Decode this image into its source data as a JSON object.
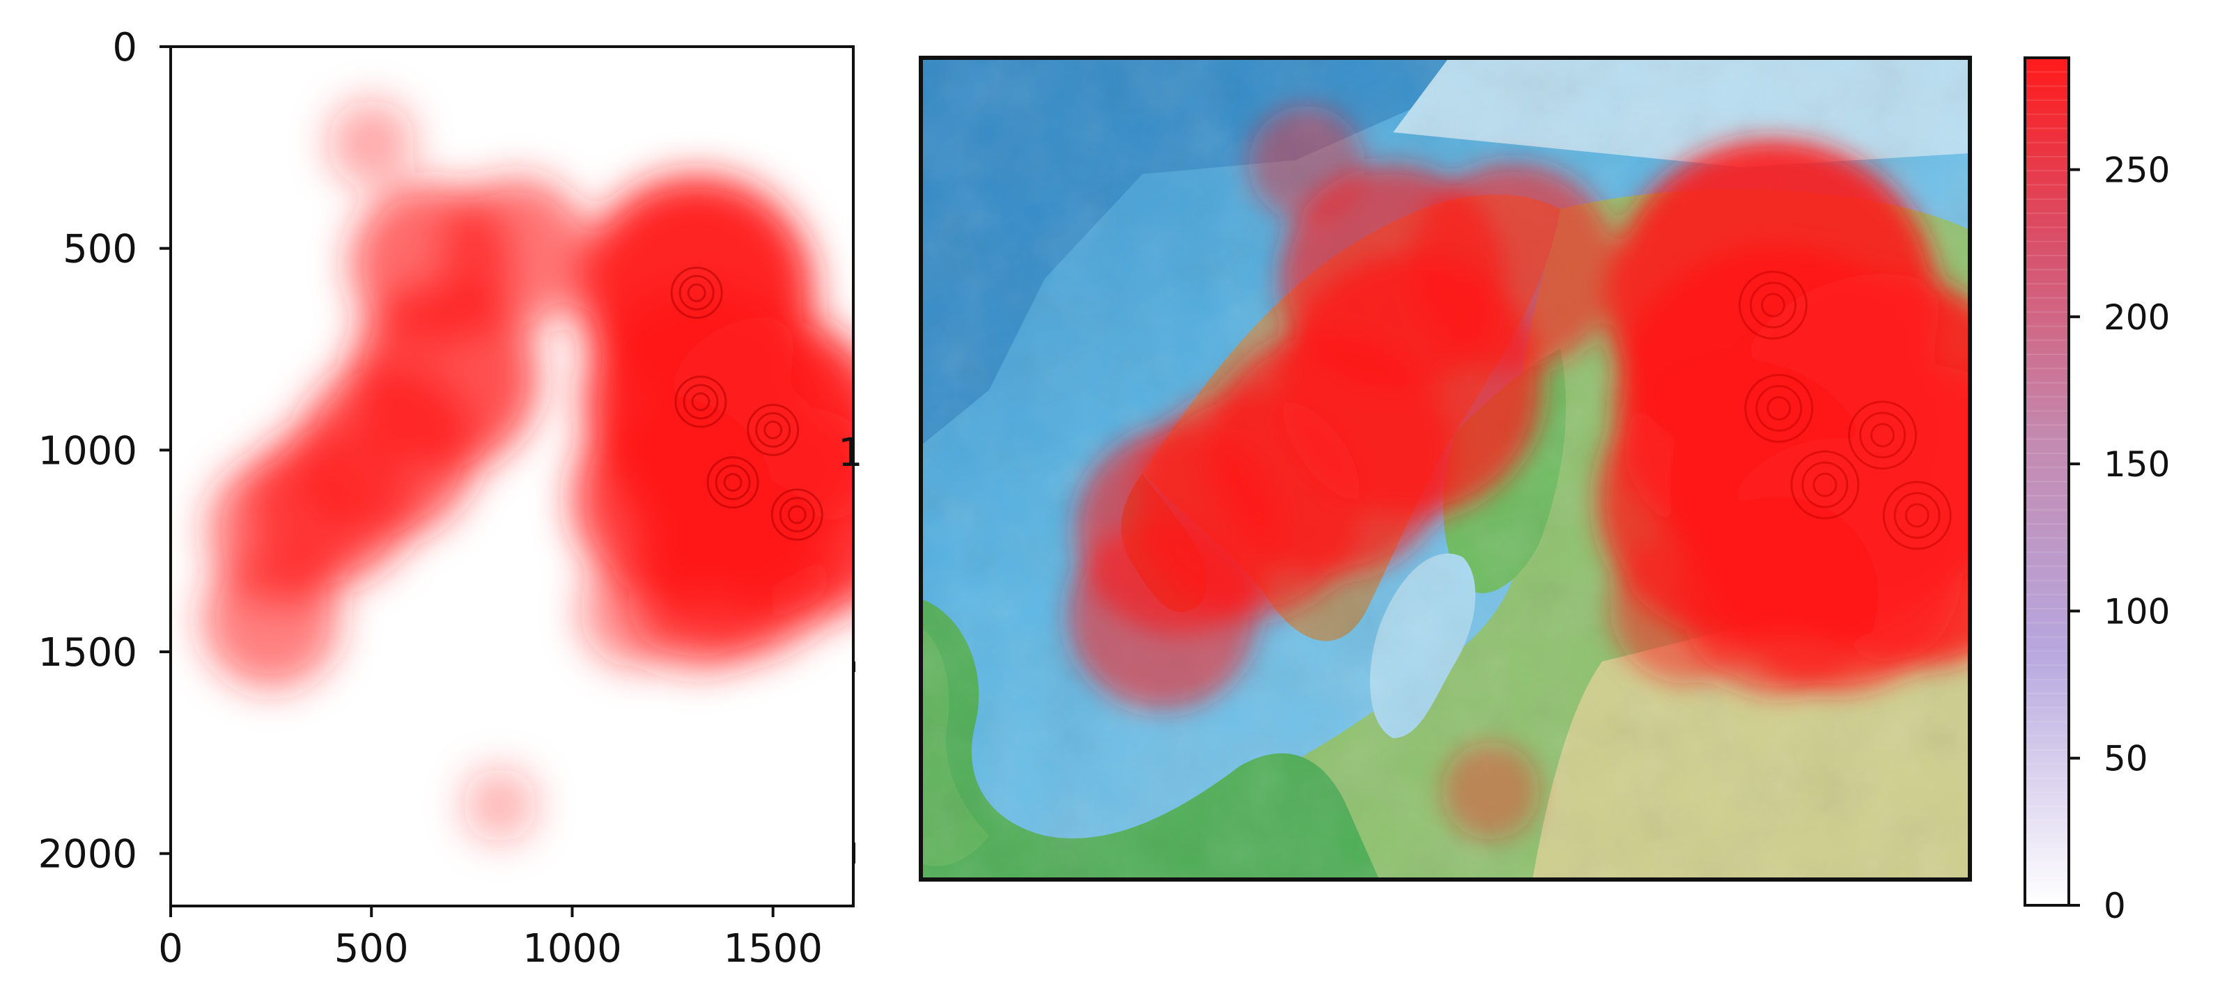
{
  "chart_data": [
    {
      "type": "heatmap",
      "title": "",
      "xlabel": "",
      "ylabel": "",
      "x_ticks": [
        0,
        500,
        1000,
        1500
      ],
      "y_ticks": [
        0,
        500,
        1000,
        1500,
        2000
      ],
      "xlim": [
        0,
        1700
      ],
      "ylim": [
        2130,
        0
      ],
      "y_inverted": true,
      "colormap": "white-to-red",
      "grid": false,
      "clipped_label_fragment": "1",
      "hotspots": [
        {
          "x": 1310,
          "y": 610,
          "value": 285
        },
        {
          "x": 1320,
          "y": 880,
          "value": 280
        },
        {
          "x": 1500,
          "y": 950,
          "value": 275
        },
        {
          "x": 1400,
          "y": 1080,
          "value": 260
        },
        {
          "x": 1560,
          "y": 1160,
          "value": 255
        },
        {
          "x": 1250,
          "y": 1120,
          "value": 230
        },
        {
          "x": 1420,
          "y": 1290,
          "value": 200
        },
        {
          "x": 1160,
          "y": 1400,
          "value": 90
        },
        {
          "x": 680,
          "y": 820,
          "value": 210
        },
        {
          "x": 650,
          "y": 540,
          "value": 170
        },
        {
          "x": 860,
          "y": 510,
          "value": 150
        },
        {
          "x": 540,
          "y": 1000,
          "value": 190
        },
        {
          "x": 400,
          "y": 1130,
          "value": 170
        },
        {
          "x": 280,
          "y": 1200,
          "value": 150
        },
        {
          "x": 250,
          "y": 1420,
          "value": 130
        },
        {
          "x": 1320,
          "y": 1370,
          "value": 140
        },
        {
          "x": 500,
          "y": 240,
          "value": 50
        },
        {
          "x": 820,
          "y": 1880,
          "value": 30
        }
      ]
    },
    {
      "type": "heatmap",
      "description_role": "overlay on terrain map",
      "colorbar": {
        "min": 0,
        "max": 288,
        "ticks": [
          0,
          50,
          100,
          150,
          200,
          250
        ],
        "colors": [
          "#ffffff",
          "#b7a7de",
          "#c48ab0",
          "#d8506a",
          "#ff1a1a"
        ]
      }
    }
  ],
  "colors": {
    "heat": "#ff1a1a",
    "sea": "#9fd3ee",
    "deep_sea": "#3f9fd6",
    "land_low": "#58b95a",
    "land_mid": "#cfcf8e",
    "mountain": "#a38b5c"
  }
}
